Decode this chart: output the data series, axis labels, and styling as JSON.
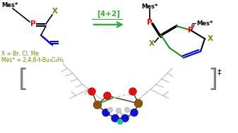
{
  "bg_color": "#ffffff",
  "arrow_color": "#3aaa35",
  "P_color": "#ff0000",
  "X_color": "#808000",
  "black": "#000000",
  "blue": "#0000cd",
  "green_bond": "#228B22",
  "bracket_color": "#808080",
  "reaction_label": "[4+2]",
  "footnote1": "X = Br, Cl, Me",
  "footnote2": "Mes* = 2,4,6-t-Bu₃C₆H₂",
  "dagger": "‡",
  "mes_label": "Mes*",
  "P_label": "P",
  "X_label": "X",
  "red_atom": "#dd1111",
  "blue_atom": "#1111cc",
  "brown_atom": "#8B5513",
  "white_atom": "#cccccc",
  "green_line": "#22aa22",
  "gray_bond": "#aaaaaa",
  "pink_bond": "#ffaaaa"
}
